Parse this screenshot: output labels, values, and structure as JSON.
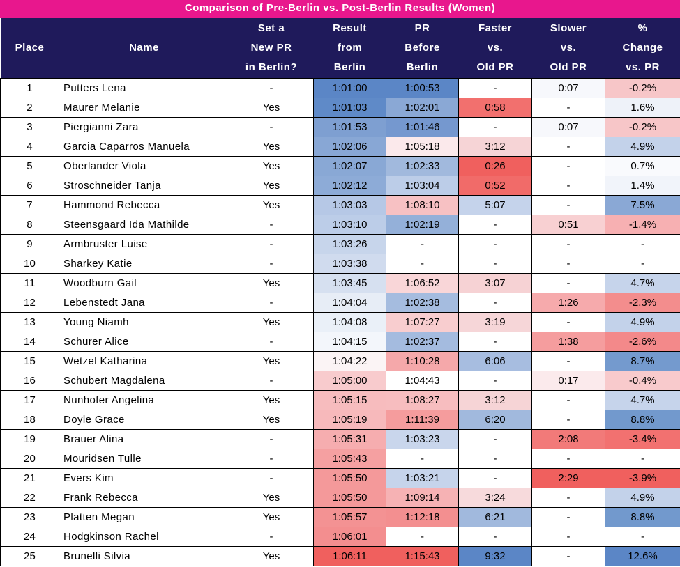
{
  "title": "Comparison of Pre-Berlin vs. Post-Berlin Results (Women)",
  "headers": {
    "place": "Place",
    "name": "Name",
    "set_pr": [
      "Set a",
      "New PR",
      "in Berlin?"
    ],
    "result": [
      "Result",
      "from",
      "Berlin"
    ],
    "pr_before": [
      "PR",
      "Before",
      "Berlin"
    ],
    "faster": [
      "Faster",
      "vs.",
      "Old PR"
    ],
    "slower": [
      "Slower",
      "vs.",
      "Old PR"
    ],
    "change": [
      "%",
      "Change",
      "vs. PR"
    ]
  },
  "colors": {
    "title_bg": "#e8178d",
    "header_bg": "#1f1a5b",
    "good_strong": "#5b86c6",
    "bad_strong": "#f0605e"
  },
  "rows": [
    {
      "place": "1",
      "name": "Putters Lena",
      "set_pr": "-",
      "result": "1:01:00",
      "pr_before": "1:00:53",
      "faster": "-",
      "slower": "0:07",
      "change": "-0.2%",
      "bg": {
        "result": "#5b86c6",
        "pr_before": "#5b86c6",
        "faster": "#ffffff",
        "slower": "#f7f8fc",
        "change": "#f7c6c8"
      }
    },
    {
      "place": "2",
      "name": "Maurer Melanie",
      "set_pr": "Yes",
      "result": "1:01:03",
      "pr_before": "1:02:01",
      "faster": "0:58",
      "slower": "-",
      "change": "1.6%",
      "bg": {
        "result": "#5f8ac8",
        "pr_before": "#8aa8d5",
        "faster": "#f2706e",
        "slower": "#ffffff",
        "change": "#eef2f9"
      }
    },
    {
      "place": "3",
      "name": "Piergianni Zara",
      "set_pr": "-",
      "result": "1:01:53",
      "pr_before": "1:01:46",
      "faster": "-",
      "slower": "0:07",
      "change": "-0.2%",
      "bg": {
        "result": "#7e9fd1",
        "pr_before": "#7598cf",
        "faster": "#ffffff",
        "slower": "#f7f8fc",
        "change": "#f7c6c8"
      }
    },
    {
      "place": "4",
      "name": "Garcia Caparros Manuela",
      "set_pr": "Yes",
      "result": "1:02:06",
      "pr_before": "1:05:18",
      "faster": "3:12",
      "slower": "-",
      "change": "4.9%",
      "bg": {
        "result": "#88a7d5",
        "pr_before": "#fbe9eb",
        "faster": "#f6d4d6",
        "slower": "#ffffff",
        "change": "#c3d2ea"
      }
    },
    {
      "place": "5",
      "name": "Oberlander Viola",
      "set_pr": "Yes",
      "result": "1:02:07",
      "pr_before": "1:02:33",
      "faster": "0:26",
      "slower": "-",
      "change": "0.7%",
      "bg": {
        "result": "#89a8d5",
        "pr_before": "#a1b9dd",
        "faster": "#f0605e",
        "slower": "#ffffff",
        "change": "#f9fafd"
      }
    },
    {
      "place": "6",
      "name": "Stroschneider Tanja",
      "set_pr": "Yes",
      "result": "1:02:12",
      "pr_before": "1:03:04",
      "faster": "0:52",
      "slower": "-",
      "change": "1.4%",
      "bg": {
        "result": "#8dabd7",
        "pr_before": "#bccde8",
        "faster": "#f16b69",
        "slower": "#ffffff",
        "change": "#f1f4fa"
      }
    },
    {
      "place": "7",
      "name": "Hammond Rebecca",
      "set_pr": "Yes",
      "result": "1:03:03",
      "pr_before": "1:08:10",
      "faster": "5:07",
      "slower": "-",
      "change": "7.5%",
      "bg": {
        "result": "#b6c8e6",
        "pr_before": "#f7c1c3",
        "faster": "#c5d3eb",
        "slower": "#ffffff",
        "change": "#8aa8d5"
      }
    },
    {
      "place": "8",
      "name": "Steensgaard Ida Mathilde",
      "set_pr": "-",
      "result": "1:03:10",
      "pr_before": "1:02:19",
      "faster": "-",
      "slower": "0:51",
      "change": "-1.4%",
      "bg": {
        "result": "#bccde8",
        "pr_before": "#94b0d9",
        "faster": "#ffffff",
        "slower": "#f8d0d2",
        "change": "#f7b0b2"
      }
    },
    {
      "place": "9",
      "name": "Armbruster Luise",
      "set_pr": "-",
      "result": "1:03:26",
      "pr_before": "-",
      "faster": "-",
      "slower": "-",
      "change": "-",
      "bg": {
        "result": "#c7d5eb",
        "pr_before": "#ffffff",
        "faster": "#ffffff",
        "slower": "#ffffff",
        "change": "#ffffff"
      }
    },
    {
      "place": "10",
      "name": "Sharkey Katie",
      "set_pr": "-",
      "result": "1:03:38",
      "pr_before": "-",
      "faster": "-",
      "slower": "-",
      "change": "-",
      "bg": {
        "result": "#d0dbee",
        "pr_before": "#ffffff",
        "faster": "#ffffff",
        "slower": "#ffffff",
        "change": "#ffffff"
      }
    },
    {
      "place": "11",
      "name": "Woodburn Gail",
      "set_pr": "Yes",
      "result": "1:03:45",
      "pr_before": "1:06:52",
      "faster": "3:07",
      "slower": "-",
      "change": "4.7%",
      "bg": {
        "result": "#d6e0f0",
        "pr_before": "#f9d6d8",
        "faster": "#f6d2d4",
        "slower": "#ffffff",
        "change": "#c6d4eb"
      }
    },
    {
      "place": "12",
      "name": "Lebenstedt Jana",
      "set_pr": "-",
      "result": "1:04:04",
      "pr_before": "1:02:38",
      "faster": "-",
      "slower": "1:26",
      "change": "-2.3%",
      "bg": {
        "result": "#e7edf6",
        "pr_before": "#a5bcdf",
        "faster": "#ffffff",
        "slower": "#f6aaac",
        "change": "#f38d8d"
      }
    },
    {
      "place": "13",
      "name": "Young Niamh",
      "set_pr": "Yes",
      "result": "1:04:08",
      "pr_before": "1:07:27",
      "faster": "3:19",
      "slower": "-",
      "change": "4.9%",
      "bg": {
        "result": "#eaf0f8",
        "pr_before": "#f8cdcf",
        "faster": "#f6d6d8",
        "slower": "#ffffff",
        "change": "#c3d2ea"
      }
    },
    {
      "place": "14",
      "name": "Schurer Alice",
      "set_pr": "-",
      "result": "1:04:15",
      "pr_before": "1:02:37",
      "faster": "-",
      "slower": "1:38",
      "change": "-2.6%",
      "bg": {
        "result": "#f3f6fb",
        "pr_before": "#a4bbdf",
        "faster": "#ffffff",
        "slower": "#f59d9e",
        "change": "#f3898a"
      }
    },
    {
      "place": "15",
      "name": "Wetzel Katharina",
      "set_pr": "Yes",
      "result": "1:04:22",
      "pr_before": "1:10:28",
      "faster": "6:06",
      "slower": "-",
      "change": "8.7%",
      "bg": {
        "result": "#fbf4f5",
        "pr_before": "#f5a8aa",
        "faster": "#a7bde0",
        "slower": "#ffffff",
        "change": "#749ace"
      }
    },
    {
      "place": "16",
      "name": "Schubert Magdalena",
      "set_pr": "-",
      "result": "1:05:00",
      "pr_before": "1:04:43",
      "faster": "-",
      "slower": "0:17",
      "change": "-0.4%",
      "bg": {
        "result": "#f8cbcd",
        "pr_before": "#ffffff",
        "faster": "#ffffff",
        "slower": "#fbeaec",
        "change": "#f8cacc"
      }
    },
    {
      "place": "17",
      "name": "Nunhofer Angelina",
      "set_pr": "Yes",
      "result": "1:05:15",
      "pr_before": "1:08:27",
      "faster": "3:12",
      "slower": "-",
      "change": "4.7%",
      "bg": {
        "result": "#f7bcbe",
        "pr_before": "#f7bdbf",
        "faster": "#f6d4d6",
        "slower": "#ffffff",
        "change": "#c6d4eb"
      }
    },
    {
      "place": "18",
      "name": "Doyle Grace",
      "set_pr": "Yes",
      "result": "1:05:19",
      "pr_before": "1:11:39",
      "faster": "6:20",
      "slower": "-",
      "change": "8.8%",
      "bg": {
        "result": "#f7b9bb",
        "pr_before": "#f59c9d",
        "faster": "#a1b9dd",
        "slower": "#ffffff",
        "change": "#7299cd"
      }
    },
    {
      "place": "19",
      "name": "Brauer Alina",
      "set_pr": "-",
      "result": "1:05:31",
      "pr_before": "1:03:23",
      "faster": "-",
      "slower": "2:08",
      "change": "-3.4%",
      "bg": {
        "result": "#f6adaf",
        "pr_before": "#c9d6ec",
        "faster": "#ffffff",
        "slower": "#f27a79",
        "change": "#f27170"
      }
    },
    {
      "place": "20",
      "name": "Mouridsen Tulle",
      "set_pr": "-",
      "result": "1:05:43",
      "pr_before": "-",
      "faster": "-",
      "slower": "-",
      "change": "-",
      "bg": {
        "result": "#f5a0a1",
        "pr_before": "#ffffff",
        "faster": "#ffffff",
        "slower": "#ffffff",
        "change": "#ffffff"
      }
    },
    {
      "place": "21",
      "name": "Evers Kim",
      "set_pr": "-",
      "result": "1:05:50",
      "pr_before": "1:03:21",
      "faster": "-",
      "slower": "2:29",
      "change": "-3.9%",
      "bg": {
        "result": "#f4999a",
        "pr_before": "#c6d4eb",
        "faster": "#ffffff",
        "slower": "#f0605e",
        "change": "#f0605e"
      }
    },
    {
      "place": "22",
      "name": "Frank Rebecca",
      "set_pr": "Yes",
      "result": "1:05:50",
      "pr_before": "1:09:14",
      "faster": "3:24",
      "slower": "-",
      "change": "4.9%",
      "bg": {
        "result": "#f4999a",
        "pr_before": "#f6b2b4",
        "faster": "#f7dadc",
        "slower": "#ffffff",
        "change": "#c3d2ea"
      }
    },
    {
      "place": "23",
      "name": "Platten Megan",
      "set_pr": "Yes",
      "result": "1:05:57",
      "pr_before": "1:12:18",
      "faster": "6:21",
      "slower": "-",
      "change": "8.8%",
      "bg": {
        "result": "#f39293",
        "pr_before": "#f38f90",
        "faster": "#a1b9dd",
        "slower": "#ffffff",
        "change": "#7299cd"
      }
    },
    {
      "place": "24",
      "name": "Hodgkinson Rachel",
      "set_pr": "-",
      "result": "1:06:01",
      "pr_before": "-",
      "faster": "-",
      "slower": "-",
      "change": "-",
      "bg": {
        "result": "#f38e8f",
        "pr_before": "#ffffff",
        "faster": "#ffffff",
        "slower": "#ffffff",
        "change": "#ffffff"
      }
    },
    {
      "place": "25",
      "name": "Brunelli Silvia",
      "set_pr": "Yes",
      "result": "1:06:11",
      "pr_before": "1:15:43",
      "faster": "9:32",
      "slower": "-",
      "change": "12.6%",
      "bg": {
        "result": "#f0605e",
        "pr_before": "#f0605e",
        "faster": "#5b86c6",
        "slower": "#ffffff",
        "change": "#5b86c6"
      }
    }
  ]
}
